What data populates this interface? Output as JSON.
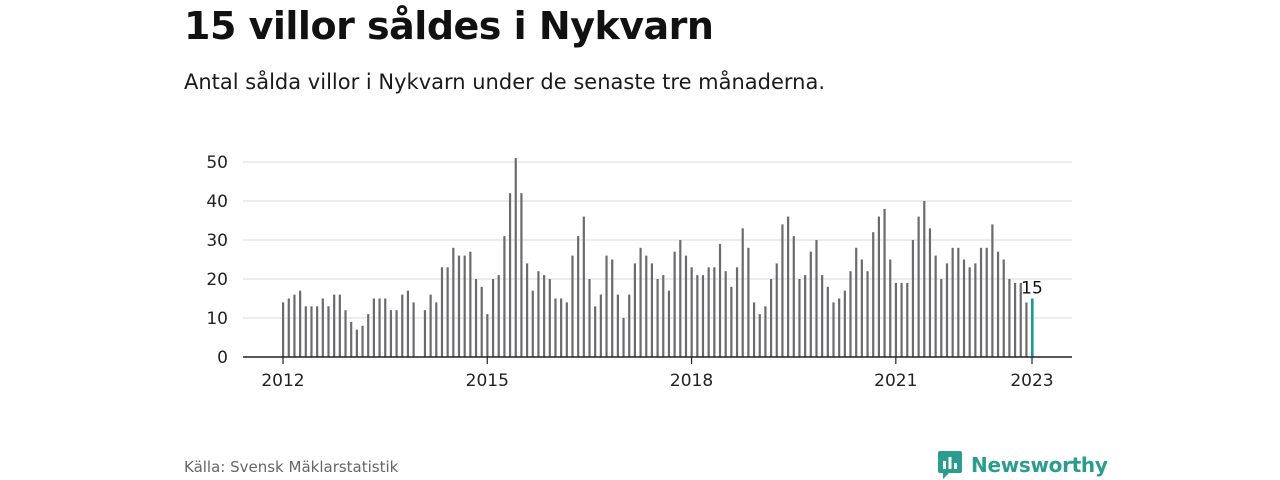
{
  "title": "15 villor såldes i Nykvarn",
  "subtitle": "Antal sålda villor i Nykvarn under de senaste tre månaderna.",
  "source": "Källa: Svensk Mäklarstatistik",
  "brand": {
    "name": "Newsworthy",
    "color": "#2a9d8f",
    "icon": "newsworthy-logo-icon"
  },
  "colors": {
    "bar": "#6b6b6e",
    "highlight": "#1a9a94",
    "grid": "#d9d9d9",
    "axis": "#222222"
  },
  "chart_data": {
    "type": "bar",
    "title": "",
    "xlabel": "",
    "ylabel": "",
    "ylim": [
      0,
      50
    ],
    "yticks": [
      0,
      10,
      20,
      30,
      40,
      50
    ],
    "xticks": [
      "2012",
      "2015",
      "2018",
      "2021",
      "2023"
    ],
    "grid": true,
    "start": "2012-01",
    "end": "2023-01",
    "highlight_last": true,
    "last_label": "15",
    "values": [
      14,
      15,
      16,
      17,
      13,
      13,
      13,
      15,
      13,
      16,
      16,
      12,
      9,
      7,
      8,
      11,
      15,
      15,
      15,
      12,
      12,
      16,
      17,
      14,
      null,
      12,
      16,
      14,
      23,
      23,
      28,
      26,
      26,
      27,
      20,
      18,
      11,
      20,
      21,
      31,
      42,
      51,
      42,
      24,
      17,
      22,
      21,
      20,
      15,
      15,
      14,
      26,
      31,
      36,
      20,
      13,
      16,
      26,
      25,
      16,
      10,
      16,
      24,
      28,
      26,
      24,
      20,
      21,
      17,
      27,
      30,
      26,
      23,
      21,
      21,
      23,
      23,
      29,
      22,
      18,
      23,
      33,
      28,
      14,
      11,
      13,
      20,
      24,
      34,
      36,
      31,
      20,
      21,
      27,
      30,
      21,
      18,
      14,
      15,
      17,
      22,
      28,
      25,
      22,
      32,
      36,
      38,
      25,
      19,
      19,
      19,
      30,
      36,
      40,
      33,
      26,
      20,
      24,
      28,
      28,
      25,
      23,
      24,
      28,
      28,
      34,
      27,
      25,
      20,
      19,
      19,
      14,
      15
    ]
  }
}
